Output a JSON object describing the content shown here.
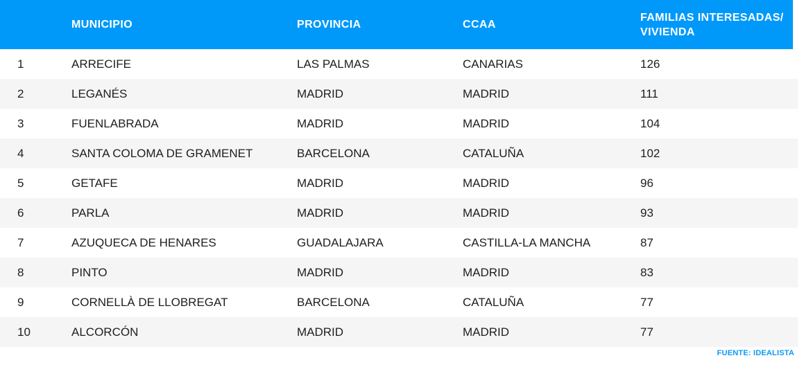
{
  "chart_data": {
    "type": "table",
    "title": "",
    "header": {
      "rank": "",
      "municipio": "MUNICIPIO",
      "provincia": "PROVINCIA",
      "ccaa": "CCAA",
      "familias_line1": "FAMILIAS INTERESADAS/",
      "familias_line2": "VIVIENDA"
    },
    "columns": [
      "",
      "MUNICIPIO",
      "PROVINCIA",
      "CCAA",
      "FAMILIAS INTERESADAS/VIVIENDA"
    ],
    "rows": [
      {
        "rank": "1",
        "municipio": "ARRECIFE",
        "provincia": "LAS PALMAS",
        "ccaa": "CANARIAS",
        "familias": "126"
      },
      {
        "rank": "2",
        "municipio": "LEGANÉS",
        "provincia": "MADRID",
        "ccaa": "MADRID",
        "familias": "111"
      },
      {
        "rank": "3",
        "municipio": "FUENLABRADA",
        "provincia": "MADRID",
        "ccaa": "MADRID",
        "familias": "104"
      },
      {
        "rank": "4",
        "municipio": "SANTA COLOMA DE GRAMENET",
        "provincia": "BARCELONA",
        "ccaa": "CATALUÑA",
        "familias": "102"
      },
      {
        "rank": "5",
        "municipio": "GETAFE",
        "provincia": "MADRID",
        "ccaa": "MADRID",
        "familias": "96"
      },
      {
        "rank": "6",
        "municipio": "PARLA",
        "provincia": "MADRID",
        "ccaa": "MADRID",
        "familias": "93"
      },
      {
        "rank": "7",
        "municipio": "AZUQUECA DE HENARES",
        "provincia": "GUADALAJARA",
        "ccaa": "CASTILLA-LA MANCHA",
        "familias": "87"
      },
      {
        "rank": "8",
        "municipio": "PINTO",
        "provincia": "MADRID",
        "ccaa": "MADRID",
        "familias": "83"
      },
      {
        "rank": "9",
        "municipio": "CORNELLÀ DE LLOBREGAT",
        "provincia": "BARCELONA",
        "ccaa": "CATALUÑA",
        "familias": "77"
      },
      {
        "rank": "10",
        "municipio": "ALCORCÓN",
        "provincia": "MADRID",
        "ccaa": "MADRID",
        "familias": "77"
      }
    ],
    "source_label": "FUENTE: IDEALISTA"
  },
  "colors": {
    "header_bg": "#0099fa",
    "row_alt_bg": "#f5f5f6",
    "body_text": "#1e1e1e",
    "header_text": "#ffffff",
    "source_text": "#0a99f7"
  }
}
